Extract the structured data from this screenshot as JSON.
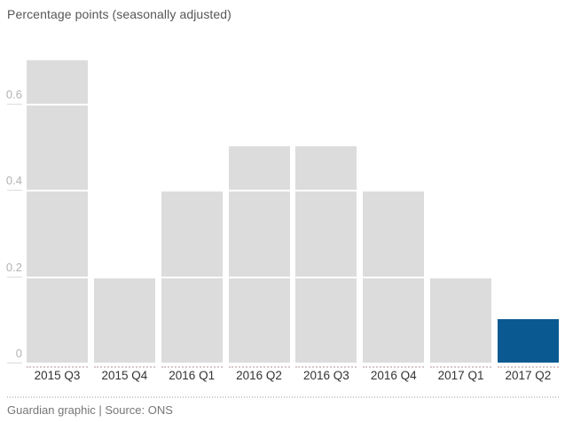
{
  "title": "Percentage points (seasonally adjusted)",
  "footer": {
    "credit": "Guardian graphic | Source: ONS"
  },
  "colors": {
    "bar": "#dcdcdc",
    "highlight": "#0a5a91",
    "gridline": "#ffffff",
    "tick": "#dcdcdc",
    "y_label": "#b2b2b2",
    "x_label": "#333333",
    "title_text": "#565656",
    "footer_text": "#767676"
  },
  "chart_data": {
    "type": "bar",
    "title": "Percentage points (seasonally adjusted)",
    "categories": [
      "2015 Q3",
      "2015 Q4",
      "2016 Q1",
      "2016 Q2",
      "2016 Q3",
      "2016 Q4",
      "2017 Q1",
      "2017 Q2"
    ],
    "values": [
      0.7,
      0.2,
      0.4,
      0.5,
      0.5,
      0.4,
      0.2,
      0.1
    ],
    "highlight_index": 7,
    "xlabel": "",
    "ylabel": "Percentage points",
    "ylim": [
      0,
      0.73
    ],
    "yticks": [
      0,
      0.2,
      0.4,
      0.6
    ],
    "grid": true,
    "legend": "none",
    "source": "Guardian graphic | Source: ONS"
  }
}
